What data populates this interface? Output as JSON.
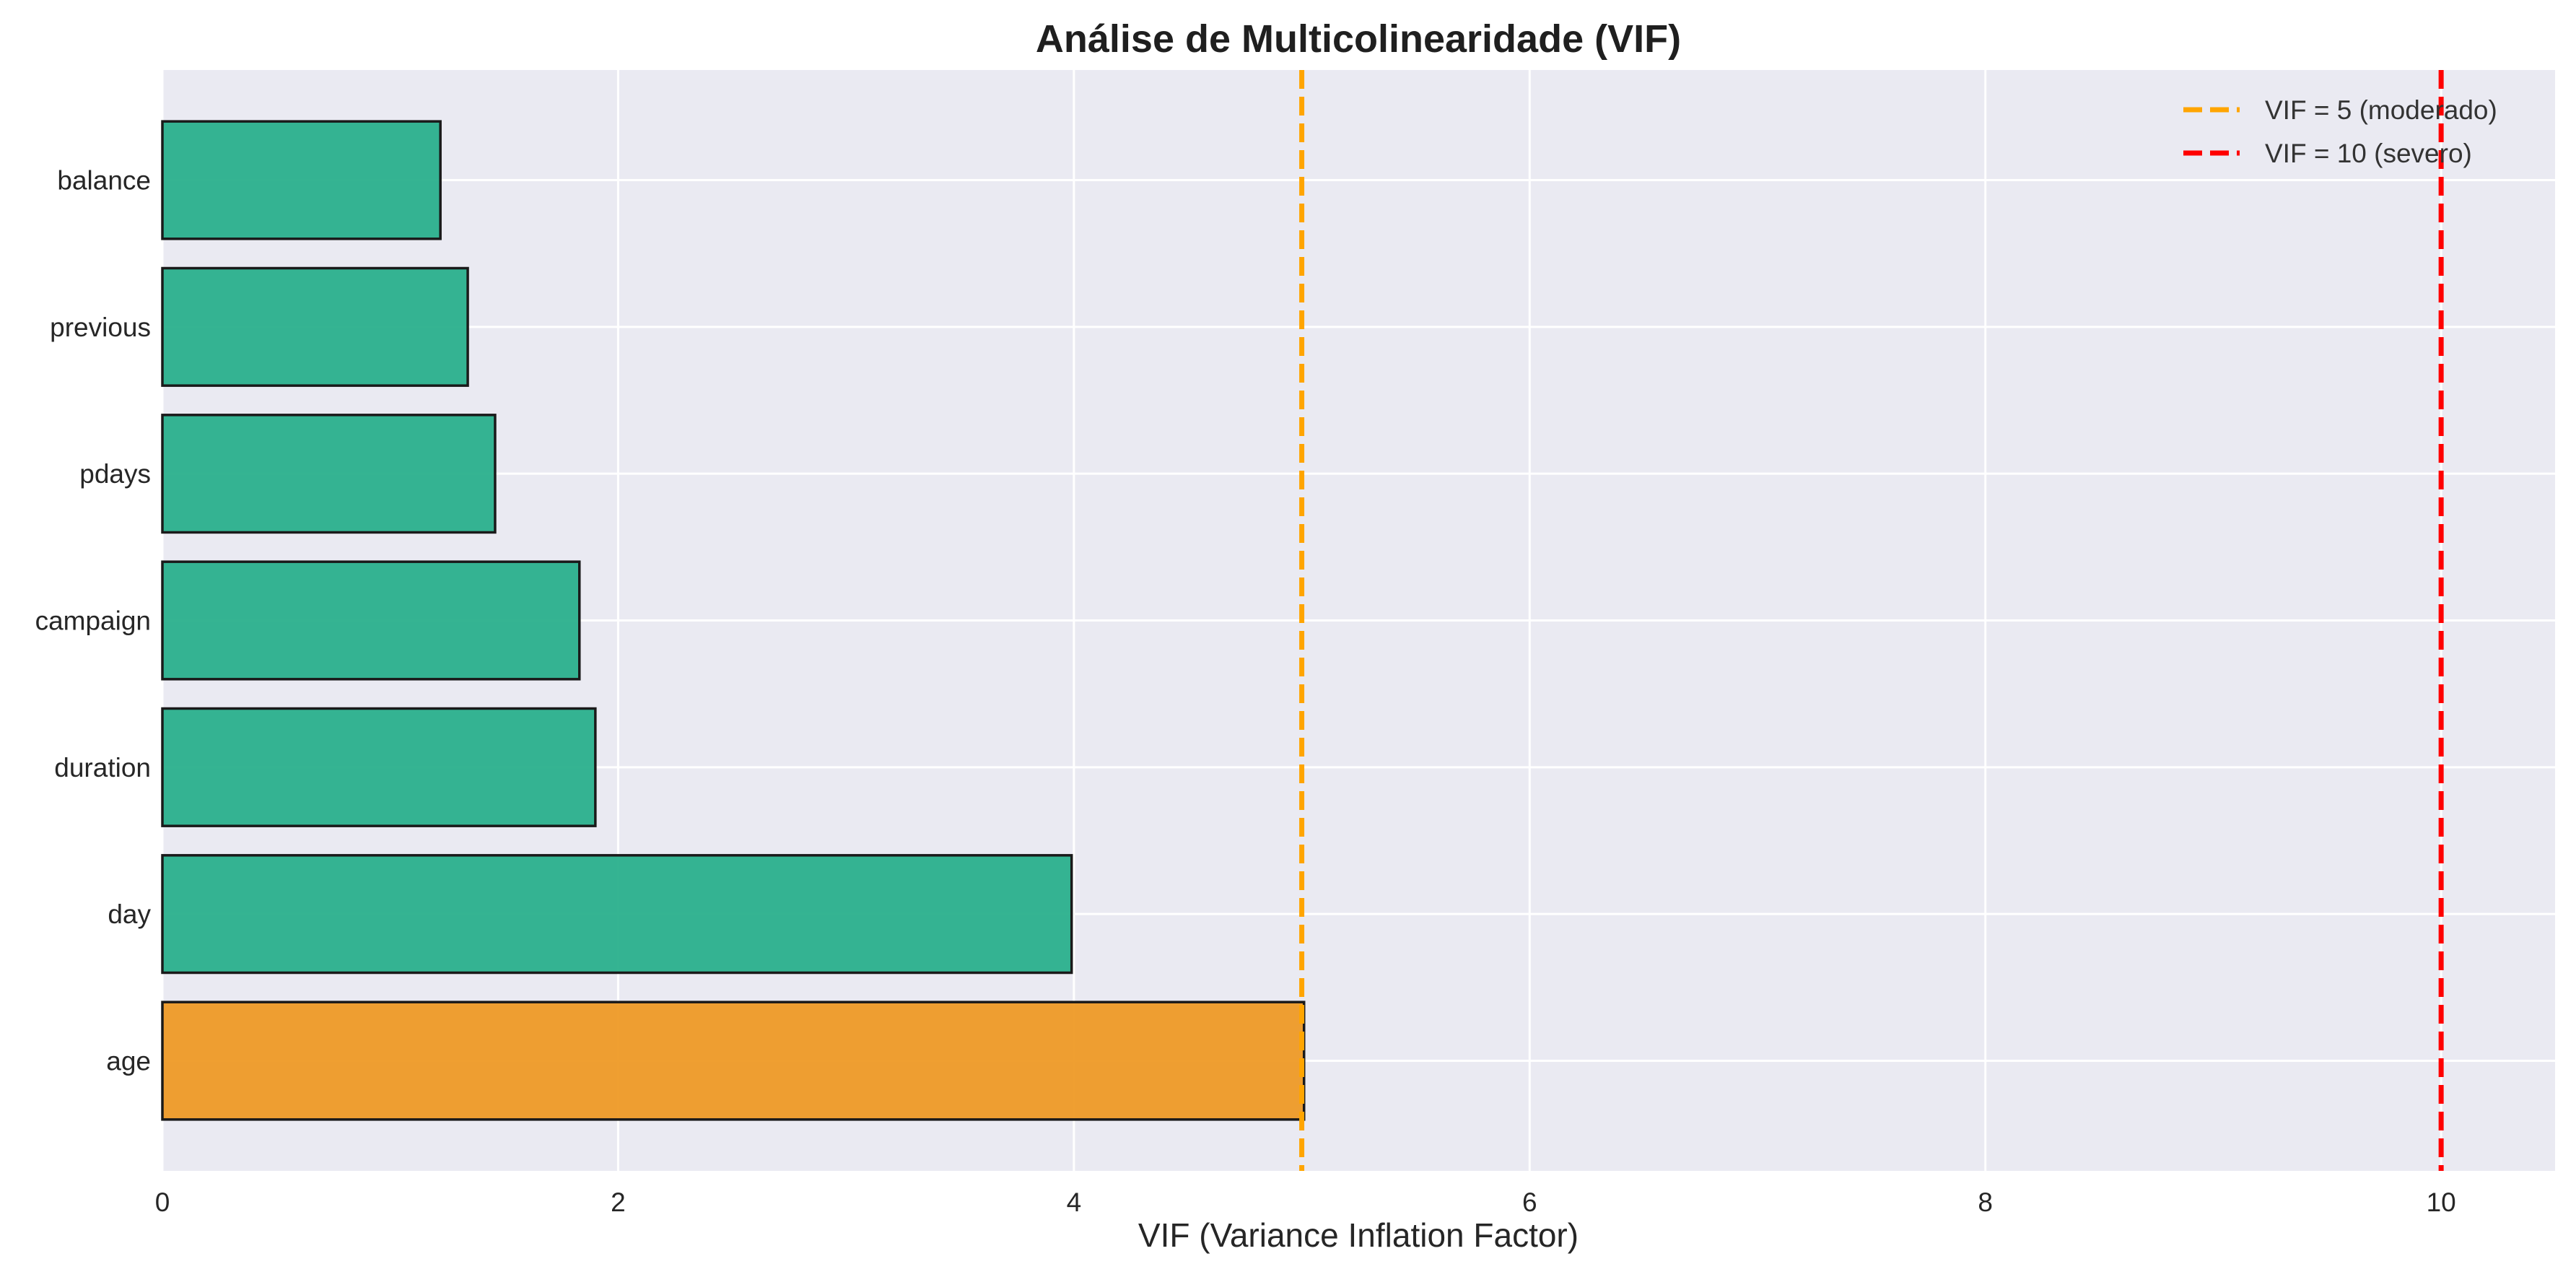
{
  "chart_data": {
    "type": "bar",
    "orientation": "horizontal",
    "title": "Análise de Multicolinearidade (VIF)",
    "xlabel": "VIF (Variance Inflation Factor)",
    "ylabel": "",
    "xlim": [
      0,
      10.5
    ],
    "xticks": [
      0,
      2,
      4,
      6,
      8,
      10
    ],
    "xtick_labels": [
      "0",
      "2",
      "4",
      "6",
      "8",
      "10"
    ],
    "grid": true,
    "legend_position": "top-right",
    "categories": [
      "balance",
      "previous",
      "pdays",
      "campaign",
      "duration",
      "day",
      "age"
    ],
    "values": [
      1.22,
      1.34,
      1.46,
      1.83,
      1.9,
      3.99,
      5.01
    ],
    "bar_colors": [
      "#2ab08c",
      "#2ab08c",
      "#2ab08c",
      "#2ab08c",
      "#2ab08c",
      "#2ab08c",
      "#ee9a26"
    ],
    "reference_lines": [
      {
        "value": 5,
        "label": "VIF = 5 (moderado)",
        "color": "#ffa500"
      },
      {
        "value": 10,
        "label": "VIF = 10 (severo)",
        "color": "#ff0000"
      }
    ],
    "colors": {
      "plot_background": "#eaeaf2",
      "grid": "#ffffff",
      "bar_edge": "#1a1a1a"
    }
  }
}
